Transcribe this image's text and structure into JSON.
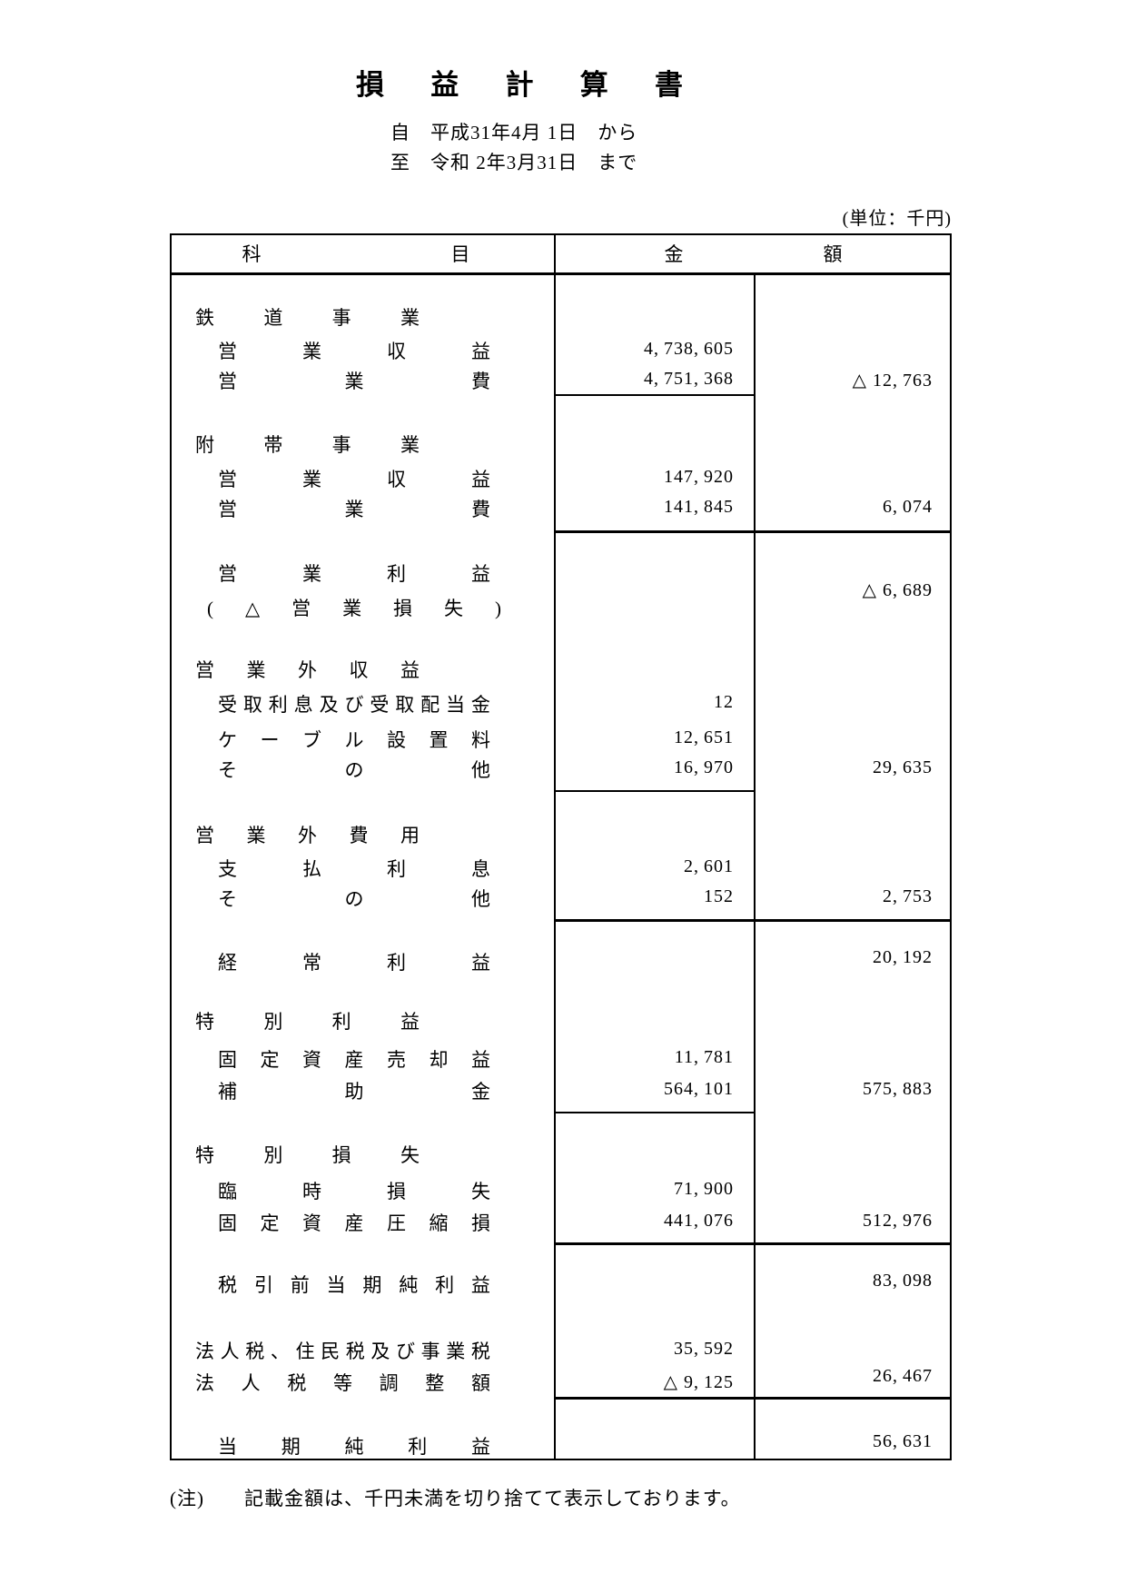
{
  "document": {
    "title": "損益計算書",
    "period_from": "自　平成31年4月 1日　から",
    "period_to": "至　令和 2年3月31日　まで",
    "unit_note": "(単位：千円)",
    "footnote": "(注)　　記載金額は、千円未満を切り捨てて表示しております。"
  },
  "table": {
    "header": {
      "account_col": "科目",
      "amount_col": "金額"
    },
    "rows": [
      {
        "label": "鉄道事業",
        "level": "section",
        "amount": "",
        "total": ""
      },
      {
        "label": "営業収益",
        "level": "item",
        "amount": "4,738,605",
        "total": ""
      },
      {
        "label": "営業費",
        "level": "item",
        "amount": "4,751,368",
        "total": "△ 12,763"
      },
      {
        "label": "附帯事業",
        "level": "section",
        "amount": "",
        "total": ""
      },
      {
        "label": "営業収益",
        "level": "item",
        "amount": "147,920",
        "total": ""
      },
      {
        "label": "営業費",
        "level": "item",
        "amount": "141,845",
        "total": "6,074"
      },
      {
        "label": "営業利益",
        "level": "item",
        "amount": "",
        "total": "△ 6,689"
      },
      {
        "label": "(△営業損失)",
        "level": "paren",
        "amount": "",
        "total": ""
      },
      {
        "label": "営業外収益",
        "level": "section",
        "amount": "",
        "total": ""
      },
      {
        "label": "受取利息及び受取配当金",
        "level": "item",
        "amount": "12",
        "total": ""
      },
      {
        "label": "ケーブル設置料",
        "level": "item",
        "amount": "12,651",
        "total": ""
      },
      {
        "label": "その他",
        "level": "item",
        "amount": "16,970",
        "total": "29,635"
      },
      {
        "label": "営業外費用",
        "level": "section",
        "amount": "",
        "total": ""
      },
      {
        "label": "支払利息",
        "level": "item",
        "amount": "2,601",
        "total": ""
      },
      {
        "label": "その他",
        "level": "item",
        "amount": "152",
        "total": "2,753"
      },
      {
        "label": "経常利益",
        "level": "item",
        "amount": "",
        "total": "20,192"
      },
      {
        "label": "特別利益",
        "level": "section",
        "amount": "",
        "total": ""
      },
      {
        "label": "固定資産売却益",
        "level": "item",
        "amount": "11,781",
        "total": ""
      },
      {
        "label": "補助金",
        "level": "item",
        "amount": "564,101",
        "total": "575,883"
      },
      {
        "label": "特別損失",
        "level": "section",
        "amount": "",
        "total": ""
      },
      {
        "label": "臨時損失",
        "level": "item",
        "amount": "71,900",
        "total": ""
      },
      {
        "label": "固定資産圧縮損",
        "level": "item",
        "amount": "441,076",
        "total": "512,976"
      },
      {
        "label": "税引前当期純利益",
        "level": "item",
        "amount": "",
        "total": "83,098"
      },
      {
        "label": "法人税、住民税及び事業税",
        "level": "wide",
        "amount": "35,592",
        "total": ""
      },
      {
        "label": "法人税等調整額",
        "level": "wide",
        "amount": "△ 9,125",
        "total": "26,467"
      },
      {
        "label": "当期純利益",
        "level": "item",
        "amount": "",
        "total": "56,631"
      }
    ]
  }
}
